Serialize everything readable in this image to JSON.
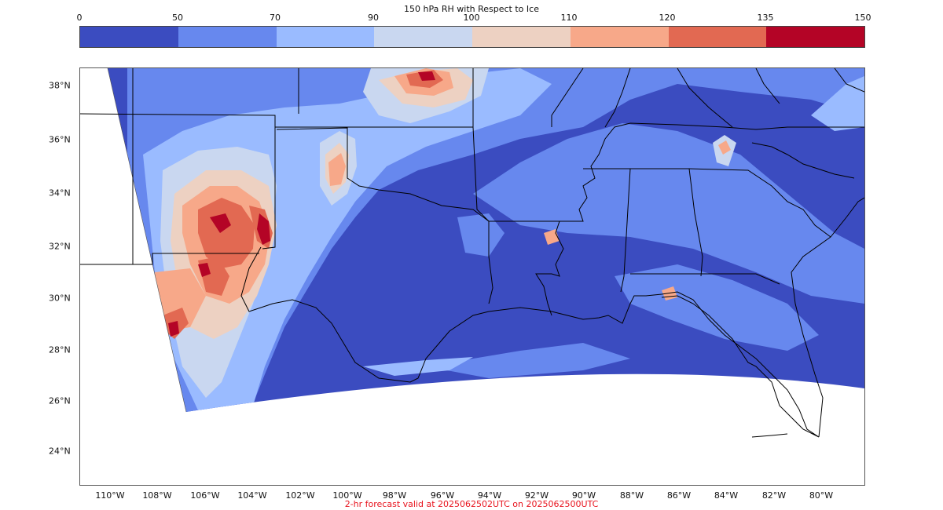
{
  "colorbar": {
    "title": "150 hPa RH with Respect to Ice",
    "ticks": [
      "0",
      "50",
      "70",
      "90",
      "100",
      "110",
      "120",
      "135",
      "150"
    ],
    "colors": [
      "#3b4cc0",
      "#6788ee",
      "#9abbff",
      "#c9d7f0",
      "#edd1c2",
      "#f7a889",
      "#e26952",
      "#b40426"
    ]
  },
  "map": {
    "lat_labels": [
      "38°N",
      "36°N",
      "34°N",
      "32°N",
      "30°N",
      "28°N",
      "26°N",
      "24°N"
    ],
    "lon_labels": [
      "110°W",
      "108°W",
      "106°W",
      "104°W",
      "102°W",
      "100°W",
      "98°W",
      "96°W",
      "94°W",
      "92°W",
      "90°W",
      "88°W",
      "86°W",
      "84°W",
      "82°W",
      "80°W"
    ]
  },
  "footer": {
    "caption": "2-hr forecast valid at 2025062502UTC on 2025062500UTC"
  }
}
